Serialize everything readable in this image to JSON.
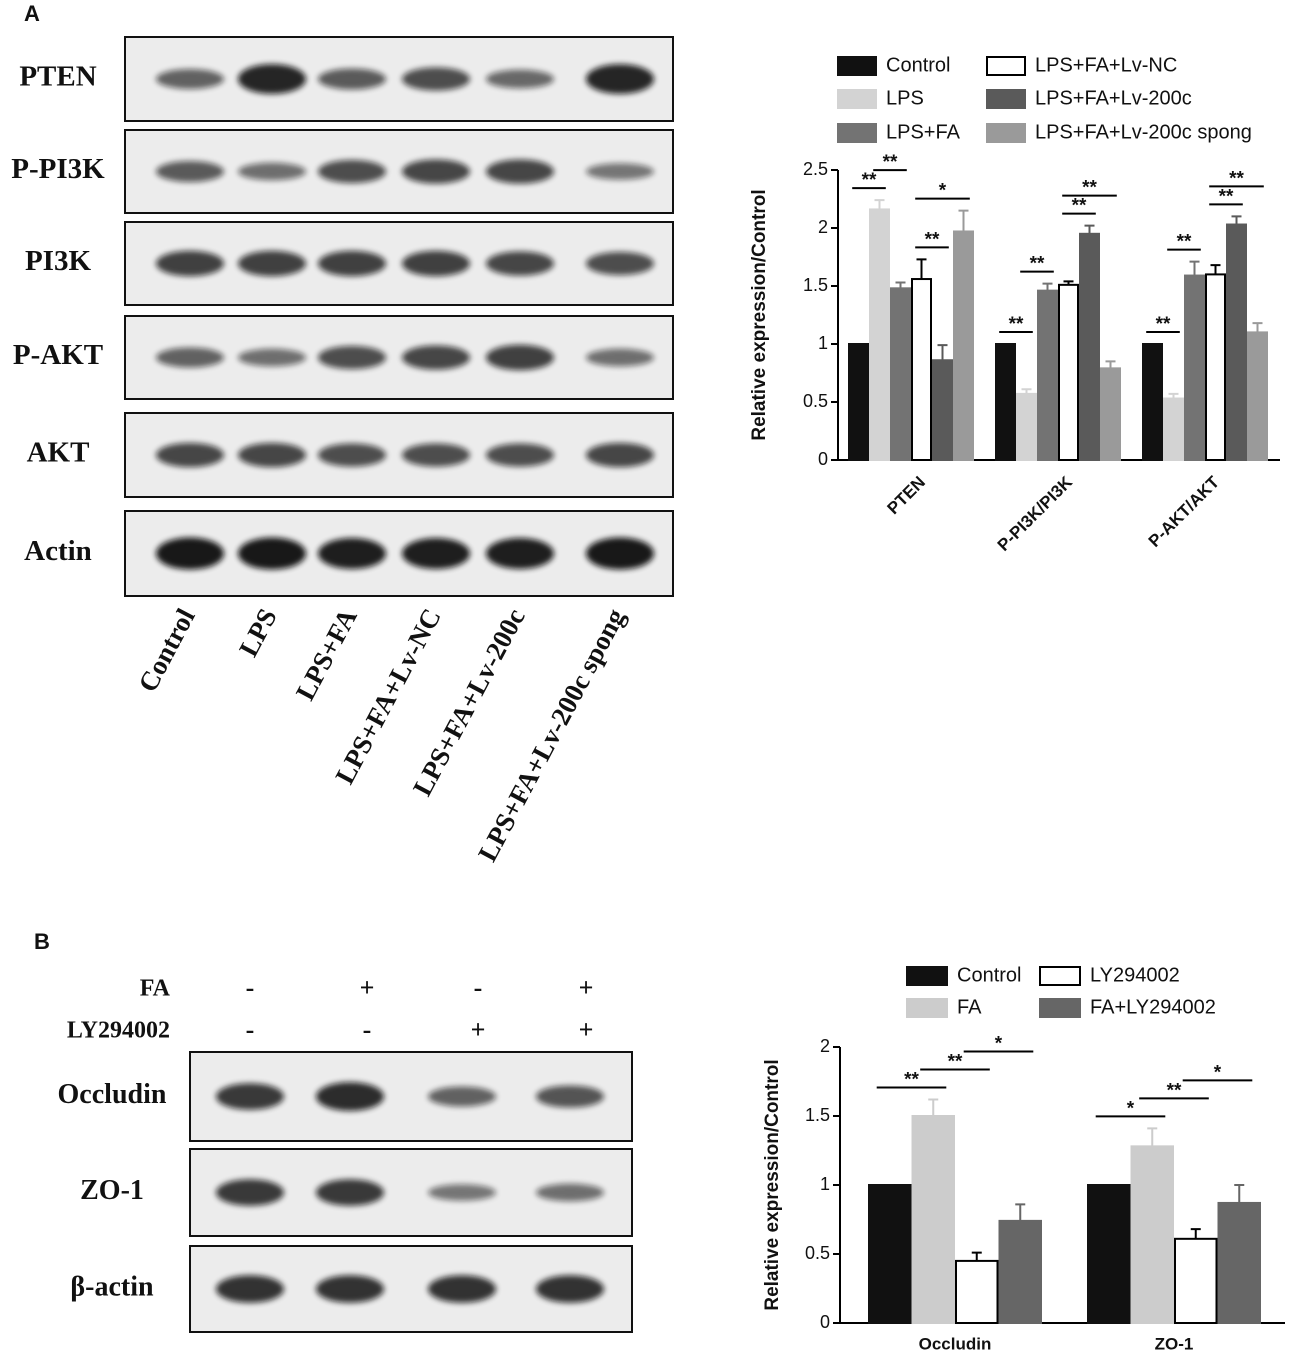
{
  "panels": {
    "a": "A",
    "b": "B"
  },
  "blot_a": {
    "rows": [
      "PTEN",
      "P-PI3K",
      "PI3K",
      "P-AKT",
      "AKT",
      "Actin"
    ],
    "lanes": [
      "Control",
      "LPS",
      "LPS+FA",
      "LPS+FA+Lv-NC",
      "LPS+FA+Lv-200c",
      "LPS+FA+Lv-200c spong"
    ]
  },
  "blot_b": {
    "rows": [
      "Occludin",
      "ZO-1",
      "β-actin"
    ],
    "conditions": [
      {
        "name": "FA",
        "signs": [
          "-",
          "+",
          "-",
          "+"
        ]
      },
      {
        "name": "LY294002",
        "signs": [
          "-",
          "-",
          "+",
          "+"
        ]
      }
    ]
  },
  "chart_data": [
    {
      "type": "bar",
      "y_label": "Relative expression/Control",
      "categories": [
        "PTEN",
        "P-PI3K/PI3K",
        "P-AKT/AKT"
      ],
      "ylim": [
        0,
        2.5
      ],
      "yticks": [
        0,
        0.5,
        1,
        1.5,
        2,
        2.5
      ],
      "series": [
        {
          "name": "Control",
          "color": "#111111",
          "values": [
            1,
            1,
            1
          ],
          "errors": [
            0,
            0,
            0
          ]
        },
        {
          "name": "LPS",
          "color": "#d3d3d3",
          "values": [
            2.16,
            0.57,
            0.53
          ],
          "errors": [
            0.08,
            0.04,
            0.04
          ]
        },
        {
          "name": "LPS+FA",
          "color": "#737373",
          "values": [
            1.48,
            1.46,
            1.59
          ],
          "errors": [
            0.05,
            0.06,
            0.12
          ]
        },
        {
          "name": "LPS+FA+Lv-NC",
          "color": "#ffffff",
          "values": [
            1.56,
            1.51,
            1.6
          ],
          "errors": [
            0.17,
            0.03,
            0.08
          ]
        },
        {
          "name": "LPS+FA+Lv-200c",
          "color": "#5a5a5a",
          "values": [
            0.86,
            1.95,
            2.03
          ],
          "errors": [
            0.13,
            0.07,
            0.07
          ]
        },
        {
          "name": "LPS+FA+Lv-200c spong",
          "color": "#9a9a9a",
          "values": [
            1.97,
            0.79,
            1.1
          ],
          "errors": [
            0.18,
            0.06,
            0.08
          ]
        }
      ],
      "annotations": [
        {
          "text": "**",
          "category": 0,
          "series": [
            0,
            1
          ]
        },
        {
          "text": "**",
          "category": 0,
          "series": [
            1,
            2
          ]
        },
        {
          "text": "**",
          "category": 0,
          "series": [
            3,
            4
          ]
        },
        {
          "text": "*",
          "category": 0,
          "series": [
            3,
            5
          ]
        },
        {
          "text": "**",
          "category": 1,
          "series": [
            0,
            1
          ]
        },
        {
          "text": "**",
          "category": 1,
          "series": [
            1,
            2
          ]
        },
        {
          "text": "**",
          "category": 1,
          "series": [
            3,
            4
          ]
        },
        {
          "text": "**",
          "category": 1,
          "series": [
            3,
            5
          ]
        },
        {
          "text": "**",
          "category": 2,
          "series": [
            0,
            1
          ]
        },
        {
          "text": "**",
          "category": 2,
          "series": [
            1,
            2
          ]
        },
        {
          "text": "**",
          "category": 2,
          "series": [
            3,
            4
          ]
        },
        {
          "text": "**",
          "category": 2,
          "series": [
            3,
            5
          ]
        }
      ]
    },
    {
      "type": "bar",
      "y_label": "Relative expression/Control",
      "categories": [
        "Occludin",
        "ZO-1"
      ],
      "ylim": [
        0,
        2
      ],
      "yticks": [
        0,
        0.5,
        1,
        1.5,
        2
      ],
      "series": [
        {
          "name": "Control",
          "color": "#111111",
          "values": [
            1,
            1
          ],
          "errors": [
            0,
            0
          ]
        },
        {
          "name": "FA",
          "color": "#cccccc",
          "values": [
            1.5,
            1.28
          ],
          "errors": [
            0.12,
            0.13
          ]
        },
        {
          "name": "LY294002",
          "color": "#ffffff",
          "values": [
            0.45,
            0.61
          ],
          "errors": [
            0.06,
            0.07
          ]
        },
        {
          "name": "FA+LY294002",
          "color": "#666666",
          "values": [
            0.74,
            0.87
          ],
          "errors": [
            0.12,
            0.13
          ]
        }
      ],
      "annotations": [
        {
          "text": "**",
          "category": 0,
          "series": [
            0,
            1
          ]
        },
        {
          "text": "**",
          "category": 0,
          "series": [
            1,
            2
          ]
        },
        {
          "text": "*",
          "category": 0,
          "series": [
            2,
            3
          ]
        },
        {
          "text": "*",
          "category": 1,
          "series": [
            0,
            1
          ]
        },
        {
          "text": "**",
          "category": 1,
          "series": [
            1,
            2
          ]
        },
        {
          "text": "*",
          "category": 1,
          "series": [
            2,
            3
          ]
        }
      ]
    }
  ]
}
